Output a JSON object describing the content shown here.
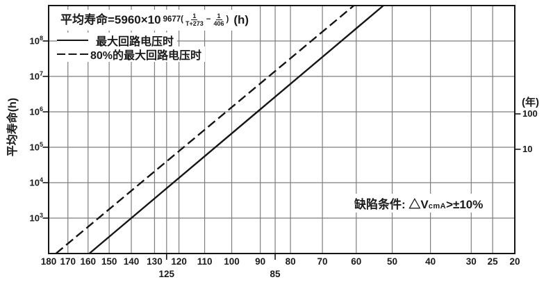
{
  "chart_data": {
    "type": "line",
    "formula": {
      "prefix": "平均寿命=5960×10",
      "exp_prefix": "9677(",
      "frac1_num": "1",
      "frac1_den": "T+273",
      "exp_minus": "−",
      "frac2_num": "1",
      "frac2_den": "406",
      "exp_suffix": ")",
      "unit": "(h)"
    },
    "legend": [
      {
        "label": "最大回路电压时",
        "style": "solid"
      },
      {
        "label": "80%的最大回路电压时",
        "style": "dashed"
      }
    ],
    "y_axis": {
      "label": "平均寿命(h)",
      "tick_exponents": [
        8,
        7,
        6,
        5,
        4,
        3
      ],
      "range_hours": [
        100,
        1000000000
      ],
      "scale": "log10"
    },
    "x_axis": {
      "ticks": [
        180,
        170,
        160,
        150,
        140,
        130,
        120,
        110,
        100,
        90,
        80,
        70,
        60,
        50,
        40,
        30,
        25,
        20
      ],
      "sub_ticks": [
        125,
        85
      ],
      "range": [
        180,
        20
      ],
      "scale": "linear in 1/(T+273)"
    },
    "right_axis": {
      "label": "(年)",
      "ticks": [
        100,
        10
      ],
      "hours_per_year": 8760
    },
    "annotation": {
      "prefix": "缺陷条件: △V",
      "sub": "cmA",
      "suffix": ">±10%"
    },
    "series": [
      {
        "name": "最大回路电压时",
        "style": "solid",
        "points": [
          {
            "temp_c": 140,
            "hours": 1000
          },
          {
            "temp_c": 91,
            "hours": 1000000
          }
        ],
        "extend_to_plot_edges": true
      },
      {
        "name": "80%的最大回路电压时",
        "style": "dashed",
        "points": [
          {
            "temp_c": 155,
            "hours": 1000
          },
          {
            "temp_c": 102,
            "hours": 1000000
          }
        ],
        "extend_to_plot_edges": true
      }
    ],
    "grid": true,
    "colors": {
      "ink": "#1a1a1a",
      "grid": "#7d7d7d",
      "background": "#ffffff"
    }
  }
}
